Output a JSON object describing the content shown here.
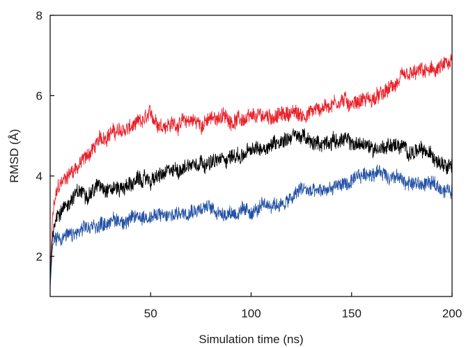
{
  "chart_data": {
    "type": "line",
    "title": "",
    "xlabel": "Simulation time (ns)",
    "ylabel": "RMSD (Å)",
    "xlim": [
      0,
      200
    ],
    "ylim": [
      1,
      8
    ],
    "x_ticks": [
      50,
      100,
      150,
      200
    ],
    "x_tick_labels": [
      "50",
      "100",
      "150",
      "200"
    ],
    "y_ticks": [
      2,
      4,
      6,
      8
    ],
    "y_tick_labels": [
      "2",
      "4",
      "6",
      "8"
    ],
    "grid": false,
    "legend": "none",
    "series": [
      {
        "color": "#e8202a",
        "x": [
          0,
          1,
          2,
          4,
          7,
          10,
          15,
          20,
          25,
          30,
          35,
          40,
          45,
          50,
          55,
          60,
          65,
          70,
          75,
          80,
          85,
          90,
          95,
          100,
          105,
          110,
          115,
          120,
          125,
          130,
          135,
          140,
          145,
          150,
          155,
          160,
          165,
          170,
          175,
          180,
          185,
          190,
          195,
          200
        ],
        "values": [
          1.4,
          2.8,
          3.3,
          3.7,
          3.9,
          4.1,
          4.3,
          4.6,
          4.9,
          5.1,
          5.1,
          5.2,
          5.3,
          5.5,
          5.3,
          5.3,
          5.3,
          5.4,
          5.3,
          5.4,
          5.5,
          5.4,
          5.4,
          5.4,
          5.5,
          5.5,
          5.5,
          5.6,
          5.5,
          5.6,
          5.7,
          5.8,
          5.9,
          5.8,
          5.9,
          5.9,
          6.0,
          6.2,
          6.4,
          6.5,
          6.6,
          6.6,
          6.7,
          6.8
        ],
        "noise": 0.17
      },
      {
        "color": "#000000",
        "x": [
          0,
          1,
          2,
          4,
          7,
          10,
          15,
          20,
          25,
          30,
          35,
          40,
          45,
          50,
          55,
          60,
          65,
          70,
          75,
          80,
          85,
          90,
          95,
          100,
          105,
          110,
          115,
          120,
          125,
          130,
          135,
          140,
          145,
          150,
          155,
          160,
          165,
          170,
          175,
          180,
          185,
          190,
          195,
          200
        ],
        "values": [
          1.3,
          2.4,
          2.9,
          3.1,
          3.2,
          3.4,
          3.6,
          3.6,
          3.8,
          3.7,
          3.7,
          3.8,
          3.9,
          3.9,
          4.0,
          4.1,
          4.2,
          4.3,
          4.4,
          4.3,
          4.4,
          4.5,
          4.5,
          4.6,
          4.7,
          4.8,
          4.9,
          5.0,
          5.0,
          4.8,
          4.8,
          4.9,
          4.9,
          4.8,
          4.8,
          4.7,
          4.7,
          4.8,
          4.7,
          4.6,
          4.6,
          4.5,
          4.4,
          4.3
        ],
        "noise": 0.17
      },
      {
        "color": "#2452a4",
        "x": [
          0,
          1,
          2,
          4,
          7,
          10,
          15,
          20,
          25,
          30,
          35,
          40,
          45,
          50,
          55,
          60,
          65,
          70,
          75,
          80,
          85,
          90,
          95,
          100,
          105,
          110,
          115,
          120,
          125,
          130,
          135,
          140,
          145,
          150,
          155,
          160,
          165,
          170,
          175,
          180,
          185,
          190,
          195,
          200
        ],
        "values": [
          1.2,
          2.1,
          2.4,
          2.5,
          2.5,
          2.5,
          2.6,
          2.7,
          2.8,
          2.9,
          2.9,
          2.9,
          3.0,
          3.0,
          3.0,
          3.0,
          3.1,
          3.2,
          3.2,
          3.2,
          3.1,
          3.1,
          3.1,
          3.1,
          3.2,
          3.3,
          3.3,
          3.4,
          3.7,
          3.6,
          3.6,
          3.7,
          3.8,
          3.8,
          4.0,
          4.1,
          4.1,
          4.0,
          3.9,
          3.8,
          3.8,
          3.8,
          3.7,
          3.6
        ],
        "noise": 0.16
      }
    ]
  }
}
